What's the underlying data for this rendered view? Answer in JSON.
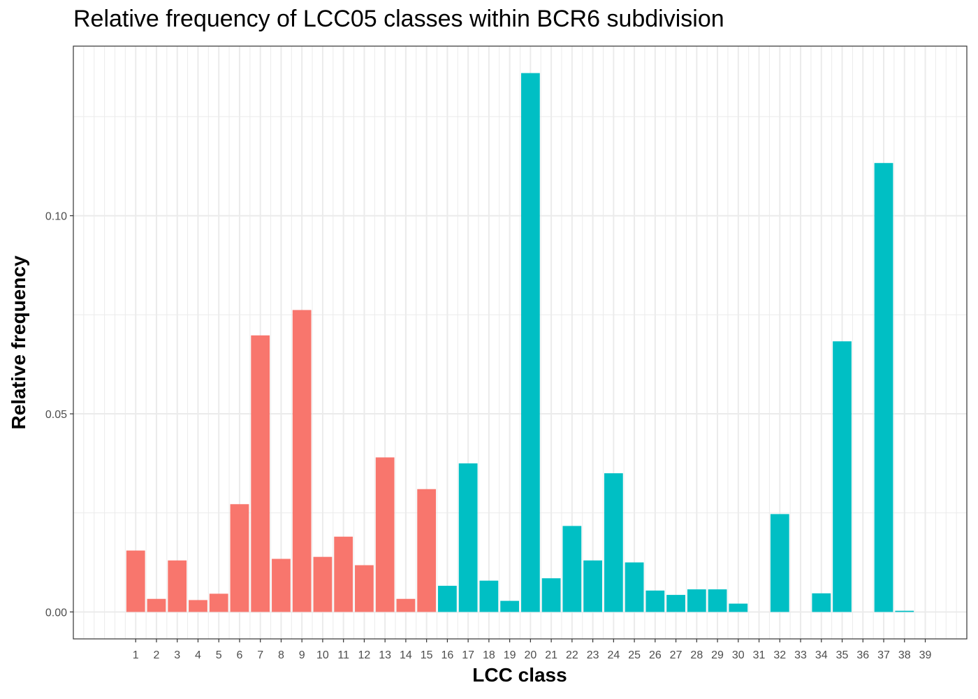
{
  "chart_data": {
    "type": "bar",
    "title": "Relative frequency of LCC05 classes within BCR6 subdivision",
    "xlabel": "LCC class",
    "ylabel": "Relative frequency",
    "categories": [
      "1",
      "2",
      "3",
      "4",
      "5",
      "6",
      "7",
      "8",
      "9",
      "10",
      "11",
      "12",
      "13",
      "14",
      "15",
      "16",
      "17",
      "18",
      "19",
      "20",
      "21",
      "22",
      "23",
      "24",
      "25",
      "26",
      "27",
      "28",
      "29",
      "30",
      "31",
      "32",
      "33",
      "34",
      "35",
      "36",
      "37",
      "38",
      "39"
    ],
    "values": [
      0.0155,
      0.0033,
      0.013,
      0.003,
      0.0046,
      0.0272,
      0.0698,
      0.0134,
      0.0762,
      0.0139,
      0.019,
      0.0118,
      0.039,
      0.0033,
      0.031,
      0.0066,
      0.0375,
      0.0079,
      0.0028,
      0.136,
      0.0085,
      0.0217,
      0.013,
      0.035,
      0.0125,
      0.0054,
      0.0043,
      0.0057,
      0.0057,
      0.0021,
      0.0,
      0.0247,
      0.0,
      0.0047,
      0.0683,
      0.0,
      0.1133,
      0.0003,
      0.0
    ],
    "bar_colors": [
      "#F8766D",
      "#F8766D",
      "#F8766D",
      "#F8766D",
      "#F8766D",
      "#F8766D",
      "#F8766D",
      "#F8766D",
      "#F8766D",
      "#F8766D",
      "#F8766D",
      "#F8766D",
      "#F8766D",
      "#F8766D",
      "#F8766D",
      "#00BFC4",
      "#00BFC4",
      "#00BFC4",
      "#00BFC4",
      "#00BFC4",
      "#00BFC4",
      "#00BFC4",
      "#00BFC4",
      "#00BFC4",
      "#00BFC4",
      "#00BFC4",
      "#00BFC4",
      "#00BFC4",
      "#00BFC4",
      "#00BFC4",
      "#00BFC4",
      "#00BFC4",
      "#00BFC4",
      "#00BFC4",
      "#00BFC4",
      "#00BFC4",
      "#00BFC4",
      "#00BFC4",
      "#00BFC4"
    ],
    "yticks": [
      "0.00",
      "0.05",
      "0.10"
    ],
    "ytick_values": [
      0.0,
      0.05,
      0.1
    ],
    "ylim": [
      -0.0068,
      0.1428
    ],
    "xlim": [
      -2.0,
      41.0
    ],
    "grid": true,
    "legend": "none",
    "colors": {
      "red": "#F8766D",
      "teal": "#00BFC4",
      "grid": "#ebebeb",
      "panel_border": "#333333"
    }
  }
}
